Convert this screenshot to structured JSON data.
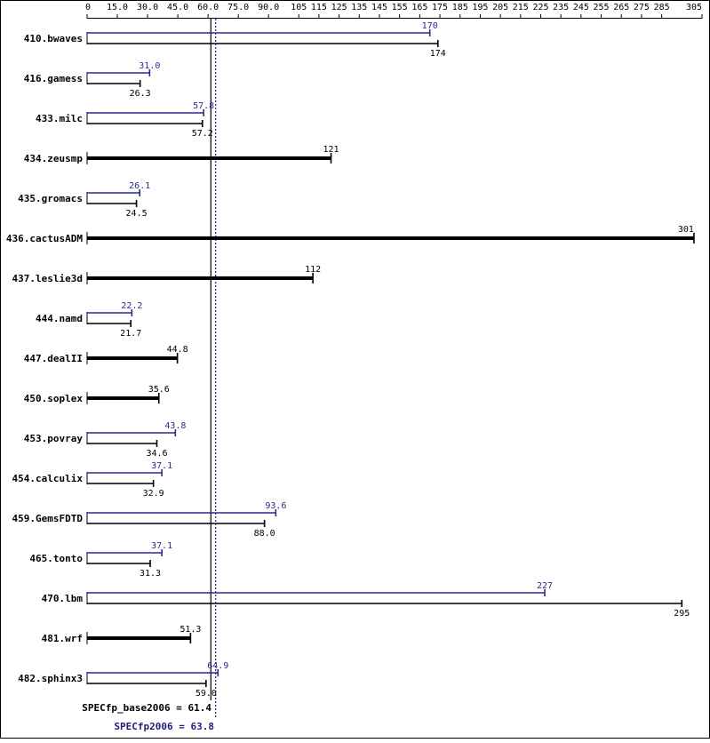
{
  "chart_data": {
    "type": "bar",
    "orientation": "horizontal",
    "xlim": [
      0,
      305
    ],
    "x_ticks": [
      "0",
      "15.0",
      "30.0",
      "45.0",
      "60.0",
      "75.0",
      "90.0",
      "105",
      "115",
      "125",
      "135",
      "145",
      "155",
      "165",
      "175",
      "185",
      "195",
      "205",
      "215",
      "225",
      "235",
      "245",
      "255",
      "265",
      "275",
      "285",
      "305"
    ],
    "x_tick_values": [
      0,
      15,
      30,
      45,
      60,
      75,
      90,
      105,
      115,
      125,
      135,
      145,
      155,
      165,
      175,
      185,
      195,
      205,
      215,
      225,
      235,
      245,
      255,
      265,
      275,
      285,
      305
    ],
    "colors": {
      "base": "#000000",
      "peak": "#2b2b8c"
    },
    "benchmarks": [
      {
        "name": "410.bwaves",
        "peak": 170,
        "peak_label": "170",
        "base": 174,
        "base_label": "174"
      },
      {
        "name": "416.gamess",
        "peak": 31.0,
        "peak_label": "31.0",
        "base": 26.3,
        "base_label": "26.3"
      },
      {
        "name": "433.milc",
        "peak": 57.8,
        "peak_label": "57.8",
        "base": 57.2,
        "base_label": "57.2"
      },
      {
        "name": "434.zeusmp",
        "base": 121,
        "base_label": "121"
      },
      {
        "name": "435.gromacs",
        "peak": 26.1,
        "peak_label": "26.1",
        "base": 24.5,
        "base_label": "24.5"
      },
      {
        "name": "436.cactusADM",
        "base": 301,
        "base_label": "301"
      },
      {
        "name": "437.leslie3d",
        "base": 112,
        "base_label": "112"
      },
      {
        "name": "444.namd",
        "peak": 22.2,
        "peak_label": "22.2",
        "base": 21.7,
        "base_label": "21.7"
      },
      {
        "name": "447.dealII",
        "base": 44.8,
        "base_label": "44.8"
      },
      {
        "name": "450.soplex",
        "base": 35.6,
        "base_label": "35.6"
      },
      {
        "name": "453.povray",
        "peak": 43.8,
        "peak_label": "43.8",
        "base": 34.6,
        "base_label": "34.6"
      },
      {
        "name": "454.calculix",
        "peak": 37.1,
        "peak_label": "37.1",
        "base": 32.9,
        "base_label": "32.9"
      },
      {
        "name": "459.GemsFDTD",
        "peak": 93.6,
        "peak_label": "93.6",
        "base": 88.0,
        "base_label": "88.0"
      },
      {
        "name": "465.tonto",
        "peak": 37.1,
        "peak_label": "37.1",
        "base": 31.3,
        "base_label": "31.3"
      },
      {
        "name": "470.lbm",
        "peak": 227,
        "peak_label": "227",
        "base": 295,
        "base_label": "295"
      },
      {
        "name": "481.wrf",
        "base": 51.3,
        "base_label": "51.3"
      },
      {
        "name": "482.sphinx3",
        "peak": 64.9,
        "peak_label": "64.9",
        "base": 59.0,
        "base_label": "59.0"
      }
    ],
    "reference_lines": {
      "base": {
        "label": "SPECfp_base2006 = 61.4",
        "value": 61.4
      },
      "peak": {
        "label": "SPECfp2006 = 63.8",
        "value": 63.8
      }
    }
  }
}
